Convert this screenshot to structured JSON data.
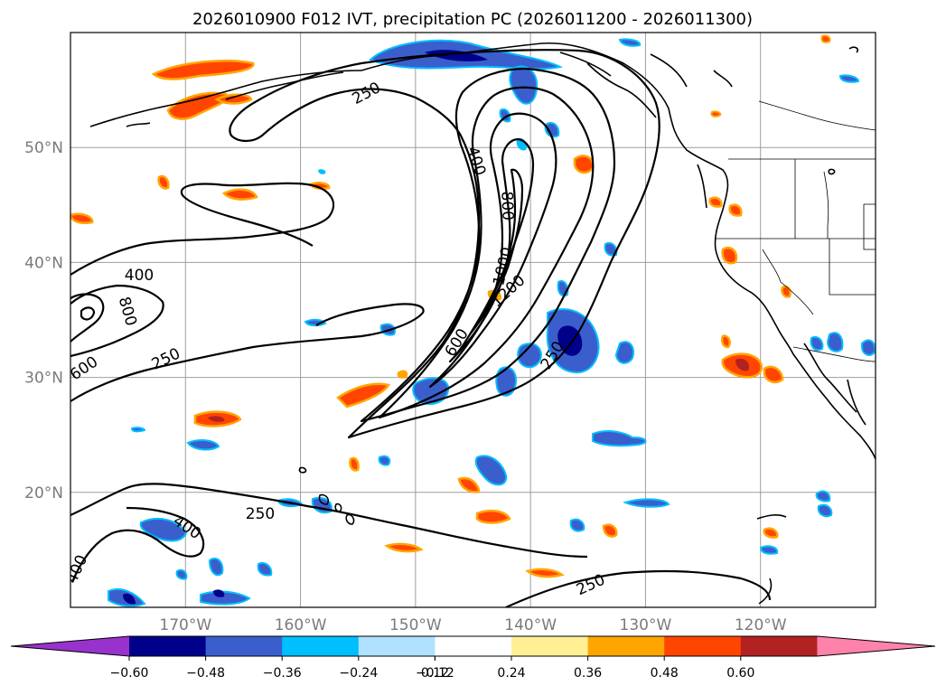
{
  "chart_data": {
    "type": "map-contour",
    "title": "2026010900 F012 IVT, precipitation PC (2026011200 - 2026011300)",
    "lat_ticks": [
      {
        "lat": 50,
        "label": "50°N"
      },
      {
        "lat": 40,
        "label": "40°N"
      },
      {
        "lat": 30,
        "label": "30°N"
      },
      {
        "lat": 20,
        "label": "20°N"
      }
    ],
    "lon_ticks": [
      {
        "lon": -170,
        "label": "170°W"
      },
      {
        "lon": -160,
        "label": "160°W"
      },
      {
        "lon": -150,
        "label": "150°W"
      },
      {
        "lon": -140,
        "label": "140°W"
      },
      {
        "lon": -130,
        "label": "130°W"
      },
      {
        "lon": -120,
        "label": "120°W"
      }
    ],
    "extent": {
      "lon": [
        -180,
        -110
      ],
      "lat": [
        10,
        60
      ]
    },
    "ivt_contour_levels": [
      250,
      400,
      600,
      800,
      1000,
      1200
    ],
    "contour_labels": [
      "250",
      "250",
      "250",
      "250",
      "250",
      "400",
      "400",
      "400",
      "400",
      "600",
      "600",
      "800",
      "800",
      "1000",
      "1200"
    ],
    "colorbar": {
      "tick_labels": [
        "−0.60",
        "−0.48",
        "−0.36",
        "−0.24",
        "−0.12",
        "0.12",
        "0.24",
        "0.36",
        "0.48",
        "0.60"
      ],
      "colors": [
        "#9932cc",
        "#00008b",
        "#3a5fcd",
        "#00bfff",
        "#b0e2ff",
        "#ffffff",
        "#fff096",
        "#ffa500",
        "#ff4500",
        "#b22222",
        "#ff82ab"
      ]
    }
  }
}
